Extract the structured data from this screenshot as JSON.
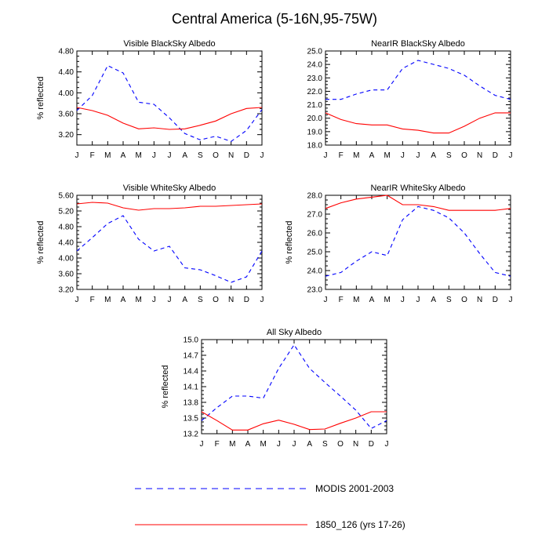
{
  "page": {
    "title": "Central America (5-16N,95-75W)"
  },
  "colors": {
    "modis": "#0000ff",
    "model": "#ff0000",
    "axis": "#000000"
  },
  "legend": [
    {
      "label": "MODIS 2001-2003",
      "style": "dashed",
      "color": "#0000ff"
    },
    {
      "label": "1850_126 (yrs 17-26)",
      "style": "solid",
      "color": "#ff0000"
    }
  ],
  "chart_data": [
    {
      "type": "line",
      "title": "Visible BlackSky Albedo",
      "xlabel": "",
      "ylabel": "% reflected",
      "categories": [
        "J",
        "F",
        "M",
        "A",
        "M",
        "J",
        "J",
        "A",
        "S",
        "O",
        "N",
        "D",
        "J"
      ],
      "ylim": [
        3.0,
        4.8
      ],
      "yticks": [
        "3.20",
        "3.60",
        "4.00",
        "4.40",
        "4.80"
      ],
      "grid": false,
      "series": [
        {
          "name": "MODIS 2001-2003",
          "style": "dashed",
          "color": "#0000ff",
          "values": [
            3.66,
            3.95,
            4.52,
            4.38,
            3.82,
            3.78,
            3.52,
            3.22,
            3.1,
            3.17,
            3.07,
            3.28,
            3.68
          ]
        },
        {
          "name": "1850_126 (yrs 17-26)",
          "style": "solid",
          "color": "#ff0000",
          "values": [
            3.72,
            3.66,
            3.57,
            3.42,
            3.31,
            3.33,
            3.3,
            3.31,
            3.38,
            3.46,
            3.6,
            3.7,
            3.72
          ]
        }
      ]
    },
    {
      "type": "line",
      "title": "NearIR BlackSky Albedo",
      "xlabel": "",
      "ylabel": "",
      "categories": [
        "J",
        "F",
        "M",
        "A",
        "M",
        "J",
        "J",
        "A",
        "S",
        "O",
        "N",
        "D",
        "J"
      ],
      "ylim": [
        18.0,
        25.0
      ],
      "yticks": [
        "18.0",
        "19.0",
        "20.0",
        "21.0",
        "22.0",
        "23.0",
        "24.0",
        "25.0"
      ],
      "grid": false,
      "series": [
        {
          "name": "MODIS 2001-2003",
          "style": "dashed",
          "color": "#0000ff",
          "values": [
            21.4,
            21.4,
            21.8,
            22.1,
            22.1,
            23.7,
            24.3,
            24.0,
            23.7,
            23.2,
            22.4,
            21.7,
            21.4
          ]
        },
        {
          "name": "1850_126 (yrs 17-26)",
          "style": "solid",
          "color": "#ff0000",
          "values": [
            20.4,
            19.9,
            19.6,
            19.5,
            19.5,
            19.2,
            19.1,
            18.9,
            18.9,
            19.4,
            20.0,
            20.4,
            20.4
          ]
        }
      ]
    },
    {
      "type": "line",
      "title": "Visible WhiteSky Albedo",
      "xlabel": "",
      "ylabel": "% reflected",
      "categories": [
        "J",
        "F",
        "M",
        "A",
        "M",
        "J",
        "J",
        "A",
        "S",
        "O",
        "N",
        "D",
        "J"
      ],
      "ylim": [
        3.2,
        5.6
      ],
      "yticks": [
        "3.20",
        "3.60",
        "4.00",
        "4.40",
        "4.80",
        "5.20",
        "5.60"
      ],
      "grid": false,
      "series": [
        {
          "name": "MODIS 2001-2003",
          "style": "dashed",
          "color": "#0000ff",
          "values": [
            4.18,
            4.52,
            4.88,
            5.08,
            4.48,
            4.18,
            4.3,
            3.75,
            3.7,
            3.55,
            3.38,
            3.52,
            4.18
          ]
        },
        {
          "name": "1850_126 (yrs 17-26)",
          "style": "solid",
          "color": "#ff0000",
          "values": [
            5.38,
            5.42,
            5.4,
            5.28,
            5.22,
            5.26,
            5.26,
            5.28,
            5.32,
            5.32,
            5.34,
            5.36,
            5.38
          ]
        }
      ]
    },
    {
      "type": "line",
      "title": "NearIR WhiteSky Albedo",
      "xlabel": "",
      "ylabel": "% reflected",
      "categories": [
        "J",
        "F",
        "M",
        "A",
        "M",
        "J",
        "J",
        "A",
        "S",
        "O",
        "N",
        "D",
        "J"
      ],
      "ylim": [
        23.0,
        28.0
      ],
      "yticks": [
        "23.0",
        "24.0",
        "25.0",
        "26.0",
        "27.0",
        "28.0"
      ],
      "grid": false,
      "series": [
        {
          "name": "MODIS 2001-2003",
          "style": "dashed",
          "color": "#0000ff",
          "values": [
            23.7,
            23.9,
            24.5,
            25.0,
            24.8,
            26.7,
            27.4,
            27.2,
            26.8,
            26.0,
            24.9,
            23.9,
            23.7
          ]
        },
        {
          "name": "1850_126 (yrs 17-26)",
          "style": "solid",
          "color": "#ff0000",
          "values": [
            27.3,
            27.6,
            27.8,
            27.9,
            28.0,
            27.5,
            27.5,
            27.4,
            27.2,
            27.2,
            27.2,
            27.2,
            27.3
          ]
        }
      ]
    },
    {
      "type": "line",
      "title": "All Sky Albedo",
      "xlabel": "",
      "ylabel": "% reflected",
      "categories": [
        "J",
        "F",
        "M",
        "A",
        "M",
        "J",
        "J",
        "A",
        "S",
        "O",
        "N",
        "D",
        "J"
      ],
      "ylim": [
        13.2,
        15.0
      ],
      "yticks": [
        "13.2",
        "13.5",
        "13.8",
        "14.1",
        "14.4",
        "14.7",
        "15.0"
      ],
      "grid": false,
      "series": [
        {
          "name": "MODIS 2001-2003",
          "style": "dashed",
          "color": "#0000ff",
          "values": [
            13.45,
            13.7,
            13.92,
            13.92,
            13.88,
            14.45,
            14.9,
            14.45,
            14.18,
            13.92,
            13.65,
            13.3,
            13.45
          ]
        },
        {
          "name": "1850_126 (yrs 17-26)",
          "style": "solid",
          "color": "#ff0000",
          "values": [
            13.62,
            13.45,
            13.27,
            13.27,
            13.39,
            13.46,
            13.38,
            13.28,
            13.29,
            13.4,
            13.5,
            13.62,
            13.62
          ]
        }
      ]
    }
  ]
}
